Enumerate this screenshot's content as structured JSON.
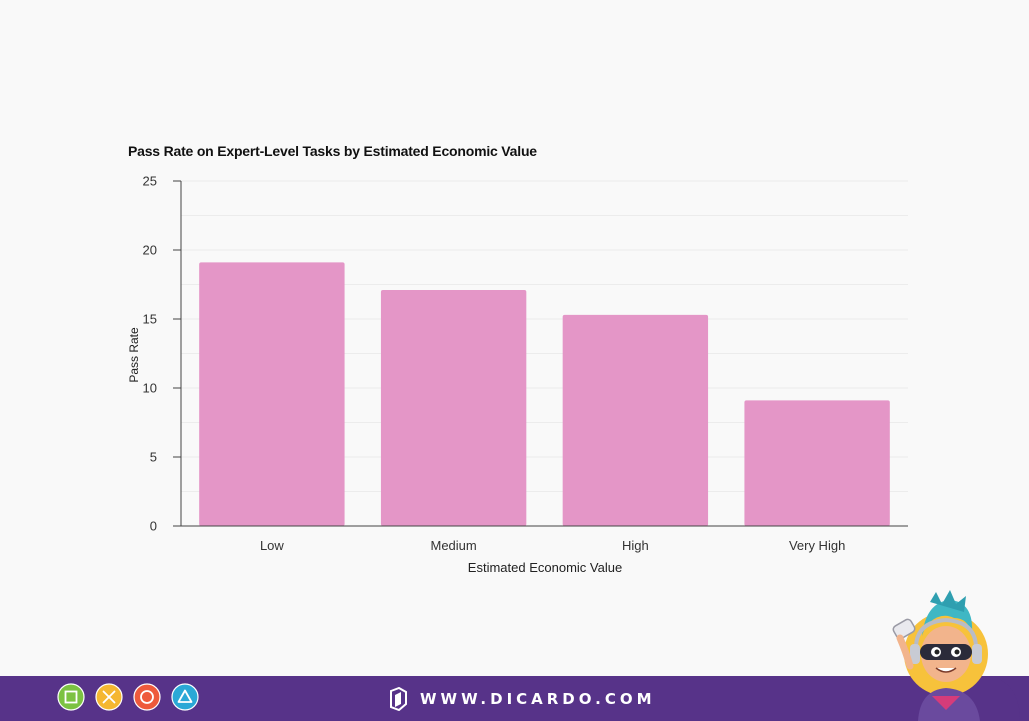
{
  "chart_data": {
    "type": "bar",
    "title": "Pass Rate on Expert-Level Tasks by Estimated Economic Value",
    "xlabel": "Estimated Economic Value",
    "ylabel": "Pass Rate",
    "categories": [
      "Low",
      "Medium",
      "High",
      "Very High"
    ],
    "values": [
      19.1,
      17.1,
      15.3,
      9.1
    ],
    "ylim": [
      0,
      25
    ],
    "yticks": [
      "0",
      "5",
      "10",
      "15",
      "20",
      "25"
    ],
    "ytick_values": [
      0,
      5,
      10,
      15,
      20,
      25
    ],
    "grid": true,
    "bar_color": "#e496c7",
    "grid_color": "#ececec",
    "axis_color": "#444444"
  },
  "footer": {
    "brand_text": "WWW.DICARDO.COM",
    "background": "#573389",
    "icons": [
      {
        "name": "square-icon",
        "color": "#7cc242"
      },
      {
        "name": "cross-icon",
        "color": "#f5b731"
      },
      {
        "name": "circle-icon",
        "color": "#ee5a3c"
      },
      {
        "name": "triangle-icon",
        "color": "#2aa8d6"
      }
    ]
  }
}
